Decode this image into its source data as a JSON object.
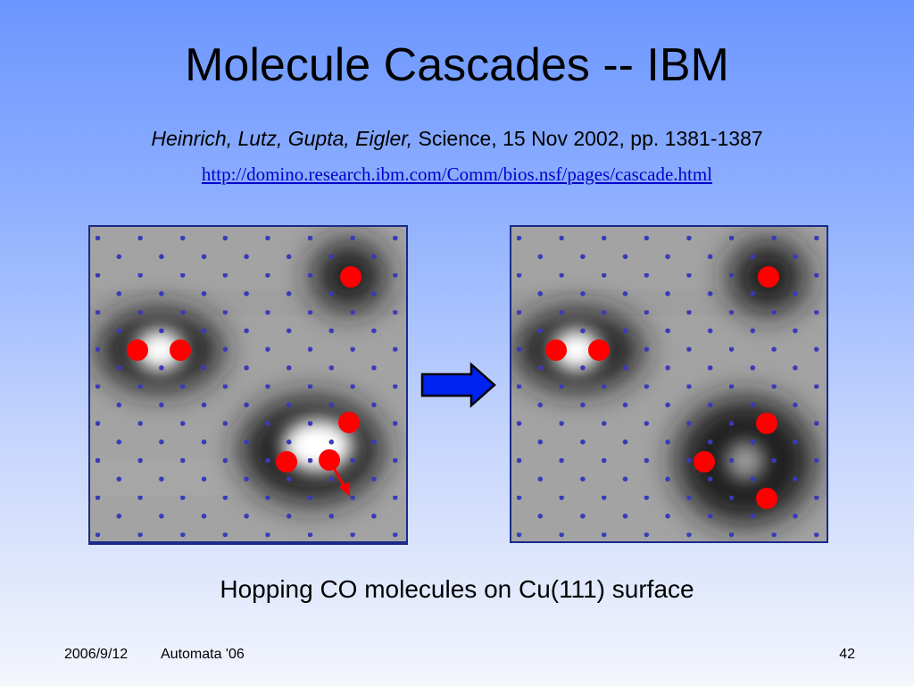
{
  "slide": {
    "title": "Molecule Cascades -- IBM",
    "citation": {
      "authors": "Heinrich, Lutz, Gupta, Eigler,",
      "rest": " Science, 15 Nov 2002, pp. 1381-1387"
    },
    "link": "http://domino.research.ibm.com/Comm/bios.nsf/pages/cascade.html",
    "caption": "Hopping CO molecules on Cu(111) surface",
    "footer": {
      "date": "2006/9/12",
      "conference": "Automata '06",
      "page": "42"
    }
  },
  "colors": {
    "molecule": "#ff0000",
    "lattice_dot": "#3a3ab8",
    "transition_arrow": "#0022ee",
    "panel_border": "#1a2a8a"
  },
  "icons": {
    "transition": "right-arrow-icon",
    "hop": "hop-arrow-icon"
  }
}
